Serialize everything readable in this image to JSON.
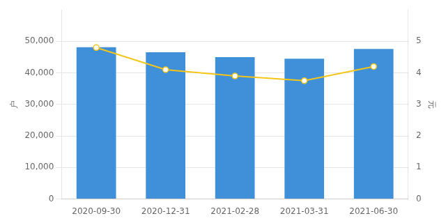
{
  "chart_data": {
    "type": "bar",
    "categories": [
      "2020-09-30",
      "2020-12-31",
      "2021-02-28",
      "2021-03-31",
      "2021-06-30"
    ],
    "series": [
      {
        "type": "bar",
        "color": "#4090d9",
        "values": [
          48100,
          46500,
          45000,
          44500,
          47600
        ]
      },
      {
        "type": "line",
        "axis": "y2",
        "color": "#f5c518",
        "marker": "circle",
        "values": [
          4.8,
          4.1,
          3.9,
          3.75,
          4.2
        ]
      }
    ],
    "ylabel": "户",
    "y2label": "元",
    "ylim": [
      0,
      60000
    ],
    "yticks": [
      0,
      {
        "value": 10000,
        "label": "10,000"
      },
      {
        "value": 20000,
        "label": "20,000"
      },
      {
        "value": 30000,
        "label": "30,000"
      },
      {
        "value": 40000,
        "label": "40,000"
      },
      {
        "value": 50000,
        "label": "50,000"
      }
    ],
    "y2lim": [
      0,
      6
    ],
    "y2ticks": [
      0,
      1,
      2,
      3,
      4,
      5
    ],
    "grid": true
  }
}
